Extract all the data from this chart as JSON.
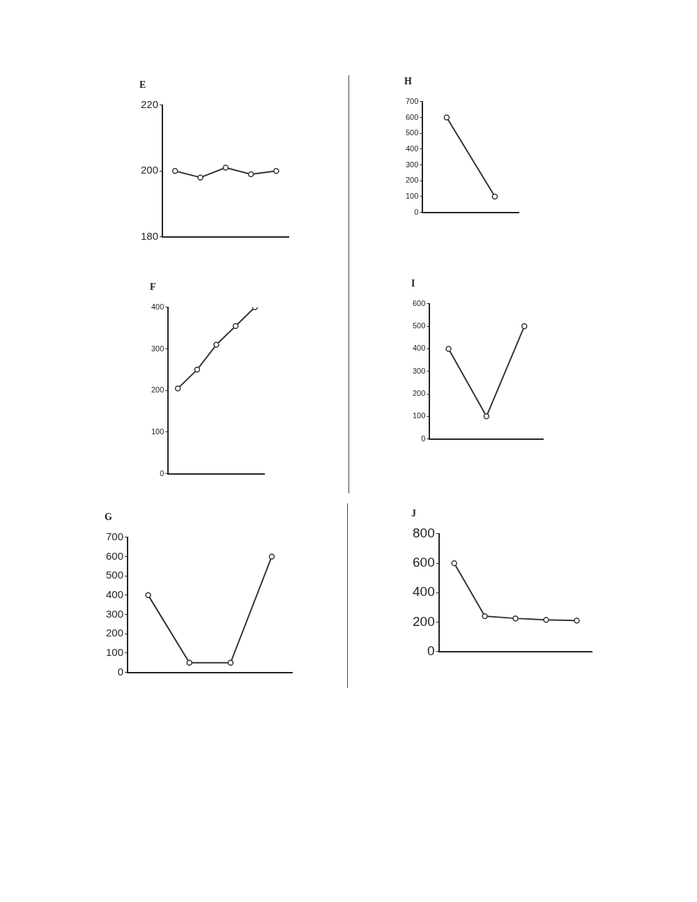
{
  "chart_data": [
    {
      "type": "line",
      "title": "E",
      "categories": [
        null,
        null,
        null,
        null,
        null
      ],
      "values": [
        200,
        198,
        201,
        199,
        200
      ],
      "color": "#333333",
      "ylim": [
        180,
        220
      ],
      "yticks": [
        180,
        200,
        220
      ],
      "grid": false,
      "legend": false,
      "marker": "circle",
      "line_style": "solid"
    },
    {
      "type": "line",
      "title": "H",
      "categories": [
        null,
        null
      ],
      "values": [
        600,
        100
      ],
      "color": "#333333",
      "ylim": [
        0,
        700
      ],
      "yticks": [
        0,
        100,
        200,
        300,
        400,
        500,
        600,
        700
      ],
      "grid": false,
      "legend": false,
      "marker": "circle",
      "line_style": "solid"
    },
    {
      "type": "line",
      "title": "F",
      "categories": [
        null,
        null,
        null,
        null,
        null
      ],
      "values": [
        205,
        250,
        310,
        355,
        400
      ],
      "color": "#333333",
      "ylim": [
        0,
        400
      ],
      "yticks": [
        0,
        100,
        200,
        300,
        400
      ],
      "grid": false,
      "legend": false,
      "marker": "circle",
      "line_style": "solid"
    },
    {
      "type": "line",
      "title": "I",
      "categories": [
        null,
        null,
        null
      ],
      "values": [
        400,
        100,
        500
      ],
      "color": "#333333",
      "ylim": [
        0,
        600
      ],
      "yticks": [
        0,
        100,
        200,
        300,
        400,
        500,
        600
      ],
      "grid": false,
      "legend": false,
      "marker": "circle",
      "line_style": "solid"
    },
    {
      "type": "line",
      "title": "G",
      "categories": [
        null,
        null,
        null,
        null
      ],
      "values": [
        400,
        50,
        50,
        600
      ],
      "color": "#333333",
      "ylim": [
        0,
        700
      ],
      "yticks": [
        0,
        100,
        200,
        300,
        400,
        500,
        600,
        700
      ],
      "grid": false,
      "legend": false,
      "marker": "circle",
      "line_style": "solid"
    },
    {
      "type": "line",
      "title": "J",
      "categories": [
        null,
        null,
        null,
        null,
        null
      ],
      "values": [
        600,
        240,
        225,
        215,
        210
      ],
      "color": "#333333",
      "ylim": [
        0,
        800
      ],
      "yticks": [
        0,
        200,
        400,
        600,
        800
      ],
      "grid": false,
      "legend": false,
      "marker": "circle",
      "line_style": "solid"
    }
  ]
}
